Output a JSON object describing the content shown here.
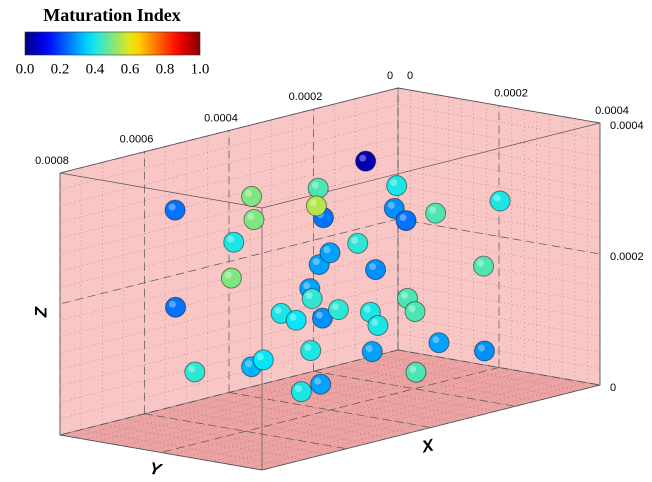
{
  "chart_data": {
    "type": "scatter3d",
    "xlabel": "X",
    "ylabel": "Y",
    "zlabel": "Z",
    "xlim": [
      0,
      0.0004
    ],
    "ylim": [
      0,
      0.0008
    ],
    "zlim": [
      0,
      0.0004
    ],
    "xticks": [
      0,
      0.0002,
      0.0004
    ],
    "yticks": [
      0,
      0.0002,
      0.0004,
      0.0006,
      0.0008
    ],
    "zticks": [
      0,
      0.0002,
      0.0004
    ],
    "x": [
      0.00012,
      0.00024,
      0.00016,
      0.00012,
      0.00024,
      9.4e-05,
      0.00028,
      0.0002,
      0.00016,
      0.0002,
      0.0002,
      0.00012,
      0.00016,
      0.00028,
      0.0002,
      0.00012,
      0.00024,
      0.00032,
      8e-05,
      0.00016,
      0.00012,
      0.00024,
      0.00032,
      0.00012,
      0.0002,
      0.00028,
      0.00036,
      0.0002,
      0.00016,
      0.00032,
      0.00024,
      0.00012,
      0.0002,
      0.00028,
      0.00016,
      0.00012,
      0.0002,
      0.00032,
      0.00024,
      0.00016
    ],
    "y": [
      0.00022,
      0.00029,
      0.00038,
      0.00049,
      0.00048,
      0.00064,
      9.3e-05,
      0.00015,
      0.0002,
      0.00022,
      0.00058,
      0.00032,
      0.00058,
      0.00043,
      0.0004,
      0.00033,
      0.00034,
      0.00018,
      0.00049,
      0.0004,
      0.00067,
      0.00049,
      0.00036,
      0.00042,
      0.00038,
      0.0004,
      0.00039,
      0.00048,
      0.00037,
      0.00043,
      0.00019,
      0.00035,
      0.0003,
      0.00013,
      0.00051,
      0.00049,
      0.00072,
      0.00034,
      0.00047,
      0.00042
    ],
    "z": [
      0.00034,
      0.00033,
      0.00033,
      0.00033,
      0.00033,
      0.00033,
      0.00028,
      0.00026,
      0.00027,
      0.00026,
      0.00032,
      0.00027,
      0.00028,
      0.00027,
      0.00024,
      0.0002,
      0.00021,
      0.0002,
      0.0002,
      0.00018,
      0.00019,
      0.00019,
      0.00018,
      0.00014,
      0.00015,
      0.00016,
      0.00017,
      0.00015,
      0.00013,
      0.00015,
      7.4e-05,
      7.2e-05,
      7.3e-05,
      5.7e-05,
      8.9e-05,
      7e-05,
      0.00011,
      6.4e-05,
      5.6e-05,
      2.6e-05
    ],
    "values": [
      0.05,
      0.4,
      0.45,
      0.5,
      0.55,
      0.25,
      0.4,
      0.45,
      0.28,
      0.25,
      0.5,
      0.25,
      0.4,
      0.42,
      0.3,
      0.3,
      0.28,
      0.45,
      0.5,
      0.3,
      0.25,
      0.42,
      0.45,
      0.4,
      0.42,
      0.4,
      0.45,
      0.38,
      0.28,
      0.4,
      0.3,
      0.4,
      0.3,
      0.28,
      0.38,
      0.32,
      0.42,
      0.45,
      0.3,
      0.4
    ],
    "colorbar": {
      "title": "Maturation Index",
      "lim": [
        0,
        1
      ],
      "ticks": [
        {
          "value": 0,
          "label": "0.0"
        },
        {
          "value": 0.2,
          "label": "0.2"
        },
        {
          "value": 0.4,
          "label": "0.4"
        },
        {
          "value": 0.6,
          "label": "0.6"
        },
        {
          "value": 0.8,
          "label": "0.8"
        },
        {
          "value": 1,
          "label": "1.0"
        }
      ]
    }
  }
}
